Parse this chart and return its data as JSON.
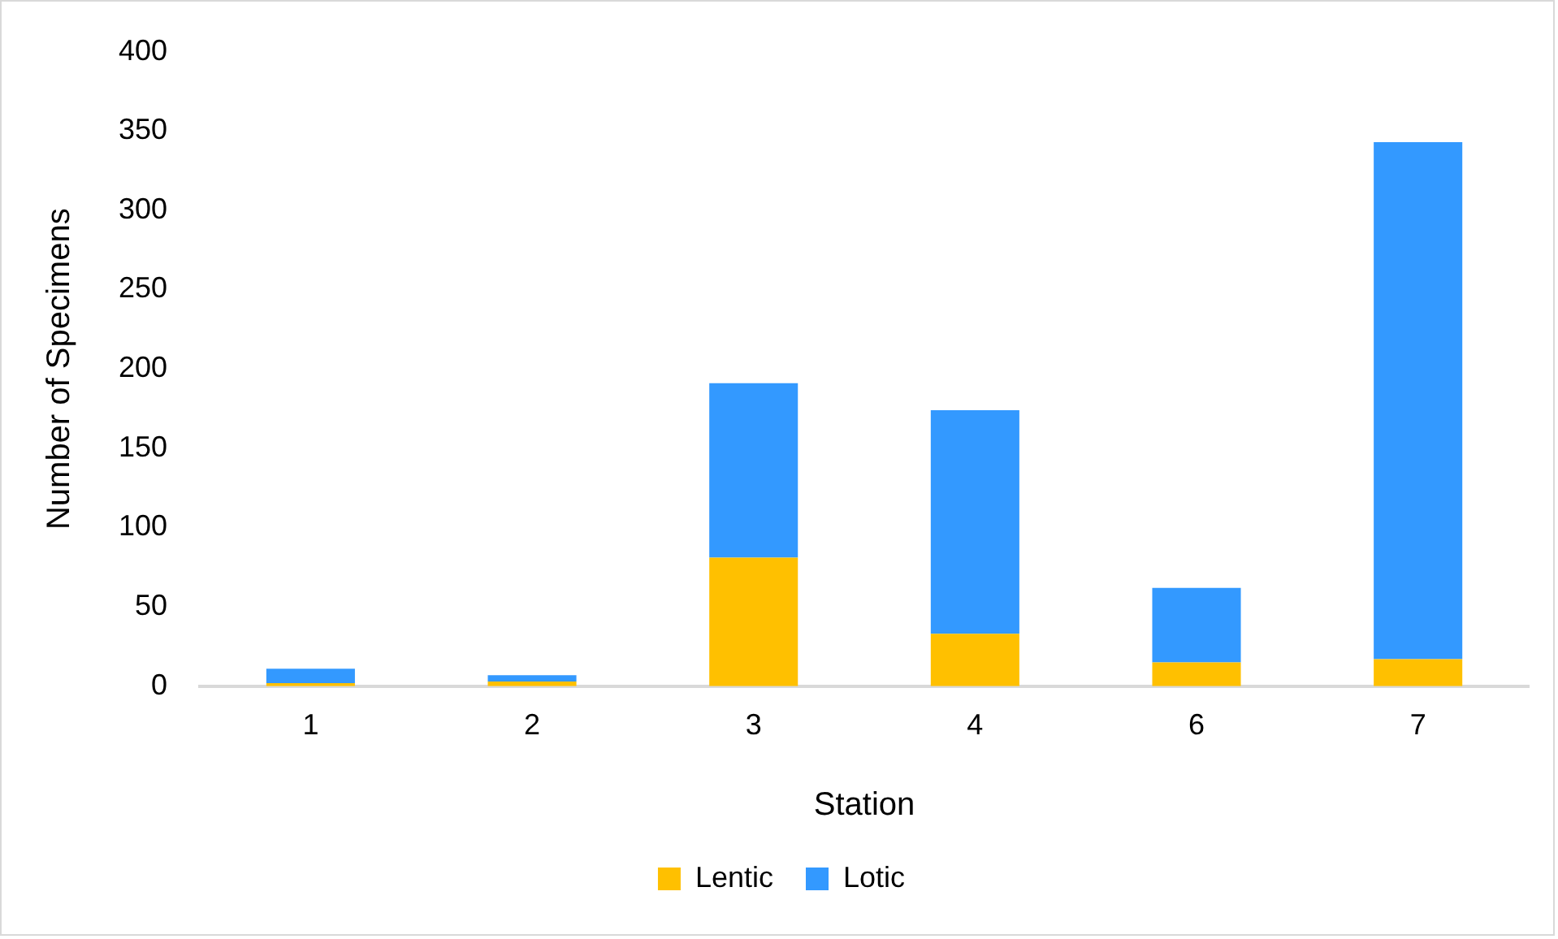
{
  "chart_data": {
    "type": "bar",
    "xlabel": "Station",
    "ylabel": "Number of Specimens",
    "categories": [
      "1",
      "2",
      "3",
      "4",
      "6",
      "7"
    ],
    "stacked": true,
    "series": [
      {
        "name": "Lentic",
        "color": "#ffc000",
        "values": [
          2,
          3,
          81,
          33,
          15,
          17
        ]
      },
      {
        "name": "Lotic",
        "color": "#3399ff",
        "values": [
          9,
          4,
          110,
          141,
          47,
          326
        ]
      }
    ],
    "ylim": [
      0,
      400
    ],
    "yticks": [
      0,
      50,
      100,
      150,
      200,
      250,
      300,
      350,
      400
    ],
    "grid": false,
    "legend": "bottom"
  }
}
